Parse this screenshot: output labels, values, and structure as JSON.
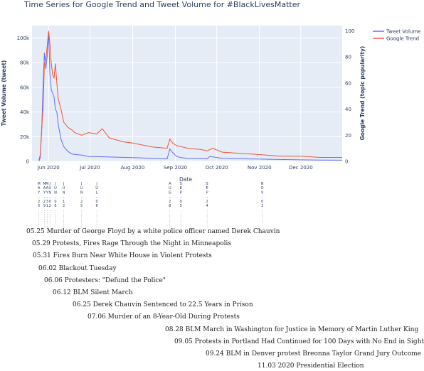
{
  "chart_data": {
    "type": "line",
    "title": "Time Series for Google Trend and Tweet Volume for #BlackLivesMatter",
    "xlabel": "Date",
    "ylabel_left": "Tweet Volume (tweet)",
    "ylabel_right": "Google Trend (topic popularity)",
    "x_start": "2020-05-20",
    "x_end": "2020-12-31",
    "xlim": [
      "2020-05-20",
      "2020-12-31"
    ],
    "ylim_left": [
      0,
      110000
    ],
    "ylim_right": [
      0,
      104
    ],
    "left_ticks": [
      0,
      20000,
      40000,
      60000,
      80000,
      100000
    ],
    "left_tick_labels": [
      "0",
      "20k",
      "40k",
      "60k",
      "80k",
      "100k"
    ],
    "right_ticks": [
      0,
      20,
      40,
      60,
      80,
      100
    ],
    "right_tick_labels": [
      "0",
      "20",
      "40",
      "60",
      "80",
      "100"
    ],
    "x_ticks": [
      "2020-06-01",
      "2020-07-01",
      "2020-08-01",
      "2020-09-01",
      "2020-10-01",
      "2020-11-01",
      "2020-12-01"
    ],
    "x_tick_labels": [
      "Jun 2020",
      "Jul 2020",
      "Aug 2020",
      "Sep 2020",
      "Oct 2020",
      "Nov 2020",
      "Dec 2020"
    ],
    "series": [
      {
        "name": "Tweet Volume",
        "color": "#636efa",
        "axis": "left",
        "x": [
          "2020-05-25",
          "2020-05-26",
          "2020-05-27",
          "2020-05-28",
          "2020-05-29",
          "2020-05-30",
          "2020-05-31",
          "2020-06-01",
          "2020-06-02",
          "2020-06-03",
          "2020-06-04",
          "2020-06-05",
          "2020-06-06",
          "2020-06-07",
          "2020-06-08",
          "2020-06-10",
          "2020-06-12",
          "2020-06-15",
          "2020-06-18",
          "2020-06-20",
          "2020-06-25",
          "2020-06-30",
          "2020-07-06",
          "2020-07-15",
          "2020-08-01",
          "2020-08-15",
          "2020-08-26",
          "2020-08-28",
          "2020-08-30",
          "2020-09-02",
          "2020-09-05",
          "2020-09-10",
          "2020-09-24",
          "2020-09-26",
          "2020-10-05",
          "2020-10-20",
          "2020-11-03",
          "2020-11-15",
          "2020-12-01",
          "2020-12-15",
          "2020-12-31"
        ],
        "y": [
          0,
          3000,
          25000,
          60000,
          88000,
          75000,
          85000,
          105000,
          70000,
          58000,
          55000,
          52000,
          42000,
          40000,
          30000,
          18000,
          12000,
          8000,
          6000,
          5500,
          5000,
          4000,
          3800,
          3500,
          3000,
          2500,
          2000,
          10000,
          7000,
          4000,
          3000,
          2500,
          2000,
          4000,
          2500,
          2000,
          1800,
          1500,
          1200,
          1000,
          900
        ]
      },
      {
        "name": "Google Trend",
        "color": "#ef553b",
        "axis": "right",
        "x": [
          "2020-05-25",
          "2020-05-26",
          "2020-05-27",
          "2020-05-28",
          "2020-05-29",
          "2020-05-30",
          "2020-05-31",
          "2020-06-01",
          "2020-06-02",
          "2020-06-03",
          "2020-06-04",
          "2020-06-05",
          "2020-06-06",
          "2020-06-07",
          "2020-06-08",
          "2020-06-10",
          "2020-06-12",
          "2020-06-15",
          "2020-06-18",
          "2020-06-20",
          "2020-06-25",
          "2020-06-30",
          "2020-07-06",
          "2020-07-10",
          "2020-07-15",
          "2020-07-25",
          "2020-08-01",
          "2020-08-15",
          "2020-08-26",
          "2020-08-28",
          "2020-08-30",
          "2020-09-02",
          "2020-09-10",
          "2020-09-20",
          "2020-09-24",
          "2020-09-28",
          "2020-10-05",
          "2020-10-20",
          "2020-11-03",
          "2020-11-15",
          "2020-12-01",
          "2020-12-15",
          "2020-12-31"
        ],
        "y": [
          1,
          5,
          25,
          40,
          75,
          78,
          88,
          100,
          90,
          75,
          66,
          64,
          75,
          60,
          48,
          40,
          30,
          26,
          24,
          22,
          20,
          22,
          21,
          25,
          18,
          15,
          14,
          11,
          10,
          17,
          14,
          12,
          10,
          9,
          8,
          10,
          7,
          6,
          5,
          4,
          4,
          3,
          3
        ]
      }
    ],
    "annotations": [
      {
        "date": "2020-05-25",
        "letters": [
          "M",
          "A",
          "Y",
          "-",
          "2",
          "5"
        ],
        "text": "05.25 Murder of George Floyd by a white police officer named Derek Chauvin"
      },
      {
        "date": "2020-05-29",
        "letters": [
          "M",
          "A",
          "Y",
          "-",
          "2",
          "9"
        ],
        "text": "05.29 Protests, Fires Rage Through the Night in Minneapolis"
      },
      {
        "date": "2020-05-31",
        "letters": [
          "M",
          "A",
          "Y",
          "-",
          "3",
          "1"
        ],
        "text": "05.31 Fires Burn Near White House in Violent Protests"
      },
      {
        "date": "2020-06-02",
        "letters": [
          "J",
          "U",
          "N",
          "-",
          "0",
          "2"
        ],
        "text": "06.02 Blackout Tuesday"
      },
      {
        "date": "2020-06-06",
        "letters": [
          "J",
          "U",
          "N",
          "-",
          "0",
          "6"
        ],
        "text": "06.06 Protesters: \"Defund the Police\""
      },
      {
        "date": "2020-06-12",
        "letters": [
          "J",
          "U",
          "N",
          "-",
          "1",
          "2"
        ],
        "text": "06.12 BLM Silent March"
      },
      {
        "date": "2020-06-25",
        "letters": [
          "J",
          "U",
          "N",
          "-",
          "2",
          "5"
        ],
        "text": "06.25 Derek Chauvin Sentenced to 22.5 Years in Prison"
      },
      {
        "date": "2020-07-06",
        "letters": [
          "J",
          "U",
          "L",
          "-",
          "0",
          "6"
        ],
        "text": "07.06 Murder of an 8-Year-Old During Protests"
      },
      {
        "date": "2020-08-28",
        "letters": [
          "A",
          "U",
          "G",
          "-",
          "2",
          "8"
        ],
        "text": "08.28 BLM March in Washington for Justice in Memory of Martin Luther King"
      },
      {
        "date": "2020-09-05",
        "letters": [
          "S",
          "E",
          "P",
          "-",
          "0",
          "5"
        ],
        "text": "09.05 Protests in Portland Had Continued for 100 Days with No End in Sight"
      },
      {
        "date": "2020-09-24",
        "letters": [
          "S",
          "E",
          "P",
          "-",
          "2",
          "4"
        ],
        "text": "09.24 BLM in Denver protest Breonna Taylor Grand Jury Outcome"
      },
      {
        "date": "2020-11-03",
        "letters": [
          "N",
          "O",
          "V",
          "-",
          "0",
          "3"
        ],
        "text": "11.03 2020 Presidential Election"
      }
    ]
  }
}
